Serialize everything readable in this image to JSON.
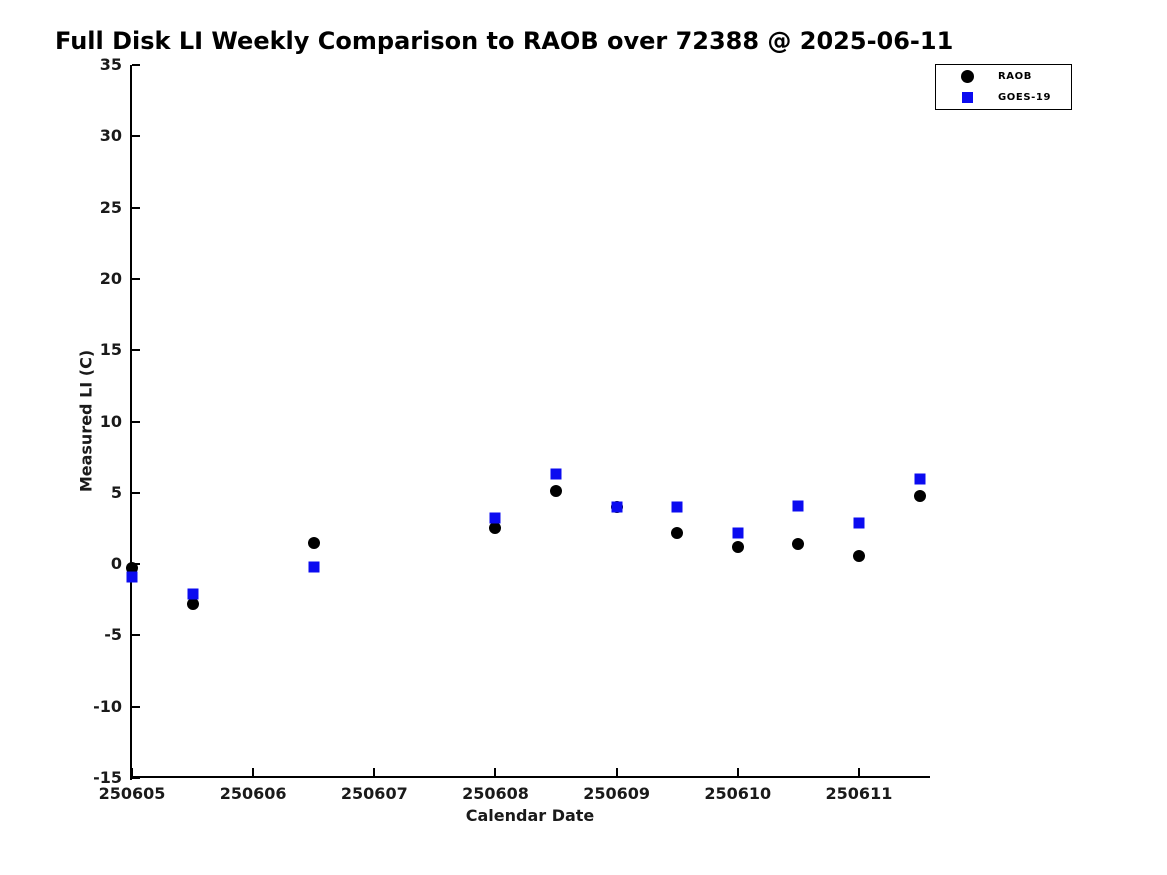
{
  "figure": {
    "title": "Full Disk LI Weekly Comparison to RAOB over 72388 @ 2025-06-11"
  },
  "chart_data": {
    "type": "scatter",
    "title": "Full Disk LI Weekly Comparison to RAOB over 72388 @ 2025-06-11",
    "xlabel": "Calendar Date",
    "ylabel": "Measured LI (C)",
    "xlim": [
      250605,
      250611.57
    ],
    "ylim": [
      -15,
      35
    ],
    "x_ticks": [
      250605,
      250606,
      250607,
      250608,
      250609,
      250610,
      250611
    ],
    "y_ticks": [
      35,
      30,
      25,
      20,
      15,
      10,
      5,
      0,
      -5,
      -10,
      -15
    ],
    "grid": false,
    "legend_position": "top-right",
    "x": [
      250605,
      250605.5,
      250606.5,
      250608,
      250608.5,
      250609,
      250609.5,
      250610,
      250610.5,
      250611,
      250611.5
    ],
    "series": [
      {
        "name": "RAOB",
        "marker": "circle",
        "color": "#000000",
        "values": [
          -0.3,
          -2.8,
          1.5,
          2.5,
          5.1,
          4.0,
          2.2,
          1.2,
          1.4,
          0.6,
          4.8
        ]
      },
      {
        "name": "GOES-19",
        "marker": "square",
        "color": "#0b0bf0",
        "values": [
          -0.9,
          -2.1,
          -0.2,
          3.2,
          6.3,
          4.0,
          4.0,
          2.2,
          4.1,
          2.9,
          6.0
        ]
      }
    ]
  }
}
